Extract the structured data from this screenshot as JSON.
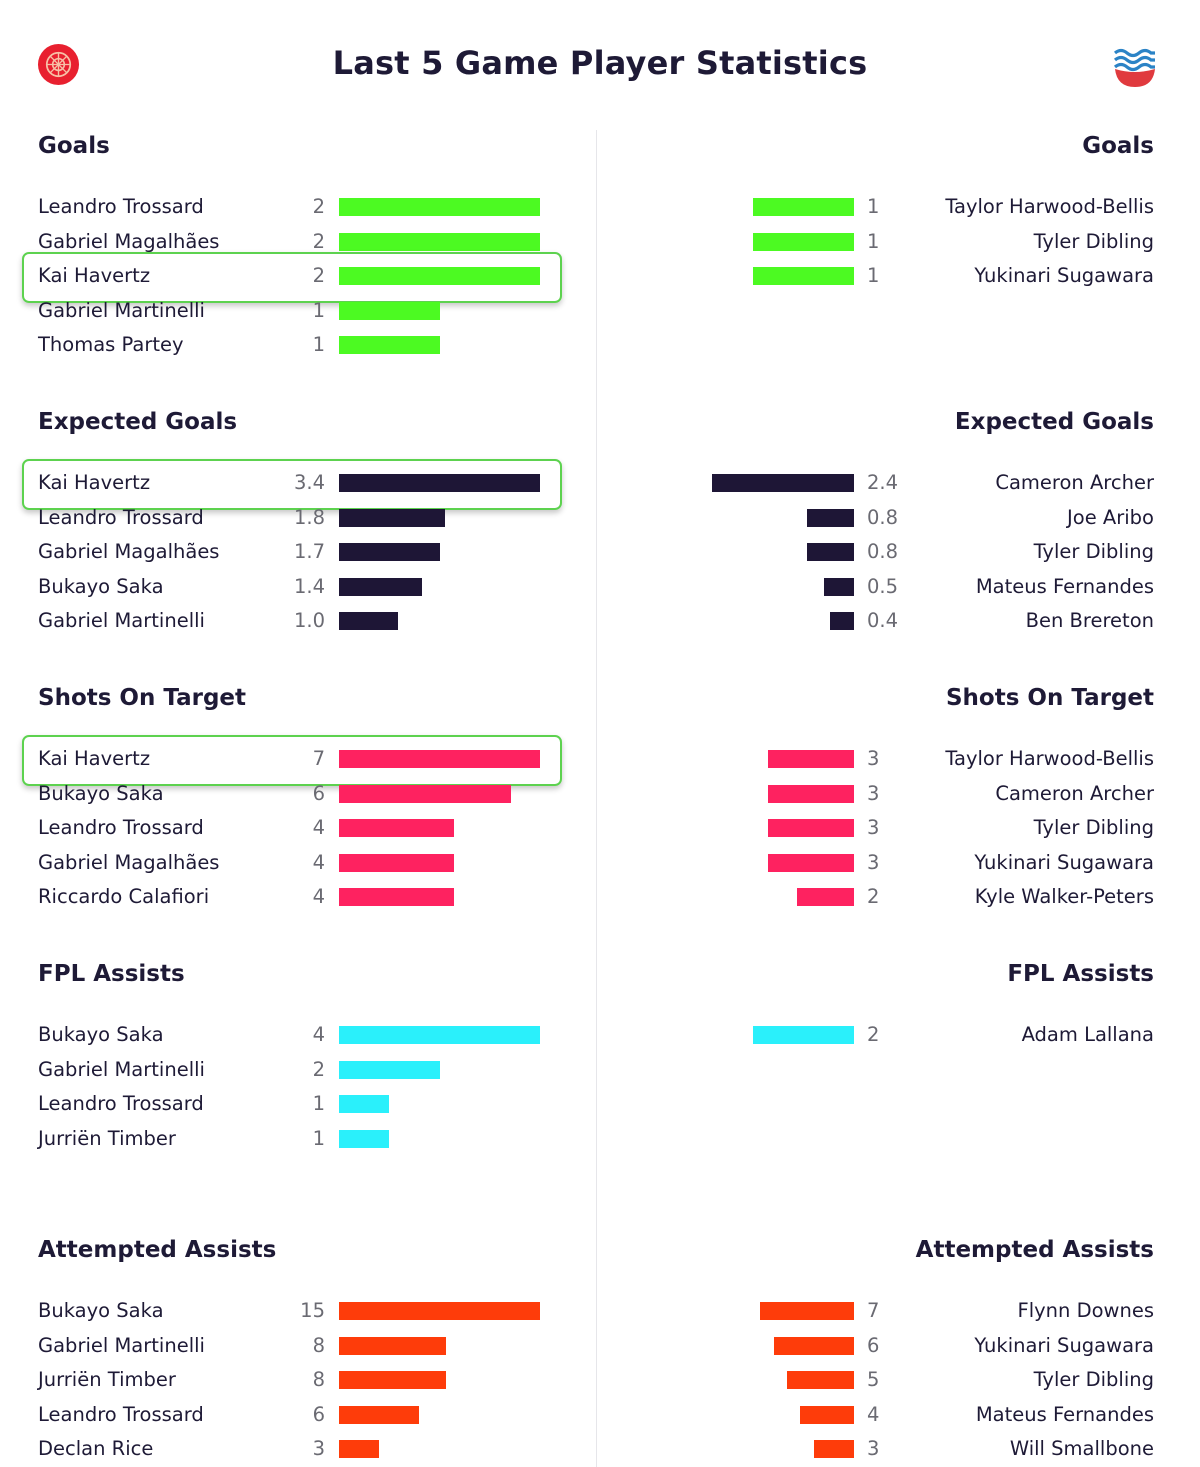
{
  "page": {
    "title": "Last 5 Game Player Statistics",
    "home_badge_icon": "arsenal-cannon-badge",
    "away_badge_icon": "southampton-wave-badge"
  },
  "chart_data": {
    "type": "bar",
    "orientation": "horizontal",
    "layout": "mirrored",
    "sections": [
      {
        "title": "Goals",
        "color": "#4cfa22",
        "scale_max": 2,
        "left": [
          {
            "name": "Leandro Trossard",
            "value": 2,
            "label": "2"
          },
          {
            "name": "Gabriel Magalhães",
            "value": 2,
            "label": "2"
          },
          {
            "name": "Kai Havertz",
            "value": 2,
            "label": "2",
            "highlighted": true
          },
          {
            "name": "Gabriel Martinelli",
            "value": 1,
            "label": "1"
          },
          {
            "name": "Thomas Partey",
            "value": 1,
            "label": "1"
          }
        ],
        "right": [
          {
            "name": "Taylor Harwood-Bellis",
            "value": 1,
            "label": "1"
          },
          {
            "name": "Tyler Dibling",
            "value": 1,
            "label": "1"
          },
          {
            "name": "Yukinari Sugawara",
            "value": 1,
            "label": "1"
          }
        ]
      },
      {
        "title": "Expected Goals",
        "color": "#1e1636",
        "scale_max": 3.4,
        "left": [
          {
            "name": "Kai Havertz",
            "value": 3.4,
            "label": "3.4",
            "highlighted": true
          },
          {
            "name": "Leandro Trossard",
            "value": 1.8,
            "label": "1.8"
          },
          {
            "name": "Gabriel Magalhães",
            "value": 1.7,
            "label": "1.7"
          },
          {
            "name": "Bukayo Saka",
            "value": 1.4,
            "label": "1.4"
          },
          {
            "name": "Gabriel Martinelli",
            "value": 1.0,
            "label": "1.0"
          }
        ],
        "right": [
          {
            "name": "Cameron Archer",
            "value": 2.4,
            "label": "2.4"
          },
          {
            "name": "Joe Aribo",
            "value": 0.8,
            "label": "0.8"
          },
          {
            "name": "Tyler Dibling",
            "value": 0.8,
            "label": "0.8"
          },
          {
            "name": "Mateus Fernandes",
            "value": 0.5,
            "label": "0.5"
          },
          {
            "name": "Ben Brereton",
            "value": 0.4,
            "label": "0.4"
          }
        ]
      },
      {
        "title": "Shots On Target",
        "color": "#fe2260",
        "scale_max": 7,
        "left": [
          {
            "name": "Kai Havertz",
            "value": 7,
            "label": "7",
            "highlighted": true
          },
          {
            "name": "Bukayo Saka",
            "value": 6,
            "label": "6"
          },
          {
            "name": "Leandro Trossard",
            "value": 4,
            "label": "4"
          },
          {
            "name": "Gabriel Magalhães",
            "value": 4,
            "label": "4"
          },
          {
            "name": "Riccardo Calafiori",
            "value": 4,
            "label": "4"
          }
        ],
        "right": [
          {
            "name": "Taylor Harwood-Bellis",
            "value": 3,
            "label": "3"
          },
          {
            "name": "Cameron Archer",
            "value": 3,
            "label": "3"
          },
          {
            "name": "Tyler Dibling",
            "value": 3,
            "label": "3"
          },
          {
            "name": "Yukinari Sugawara",
            "value": 3,
            "label": "3"
          },
          {
            "name": "Kyle Walker-Peters",
            "value": 2,
            "label": "2"
          }
        ]
      },
      {
        "title": "FPL Assists",
        "color": "#2af0fb",
        "scale_max": 4,
        "left": [
          {
            "name": "Bukayo Saka",
            "value": 4,
            "label": "4"
          },
          {
            "name": "Gabriel Martinelli",
            "value": 2,
            "label": "2"
          },
          {
            "name": "Leandro Trossard",
            "value": 1,
            "label": "1"
          },
          {
            "name": "Jurriën Timber",
            "value": 1,
            "label": "1"
          }
        ],
        "right": [
          {
            "name": "Adam Lallana",
            "value": 2,
            "label": "2"
          }
        ]
      },
      {
        "title": "Attempted Assists",
        "color": "#fe3c0a",
        "scale_max": 15,
        "left": [
          {
            "name": "Bukayo Saka",
            "value": 15,
            "label": "15"
          },
          {
            "name": "Gabriel Martinelli",
            "value": 8,
            "label": "8"
          },
          {
            "name": "Jurriën Timber",
            "value": 8,
            "label": "8"
          },
          {
            "name": "Leandro Trossard",
            "value": 6,
            "label": "6"
          },
          {
            "name": "Declan Rice",
            "value": 3,
            "label": "3"
          }
        ],
        "right": [
          {
            "name": "Flynn Downes",
            "value": 7,
            "label": "7"
          },
          {
            "name": "Yukinari Sugawara",
            "value": 6,
            "label": "6"
          },
          {
            "name": "Tyler Dibling",
            "value": 5,
            "label": "5"
          },
          {
            "name": "Mateus Fernandes",
            "value": 4,
            "label": "4"
          },
          {
            "name": "Will Smallbone",
            "value": 3,
            "label": "3"
          }
        ]
      }
    ]
  }
}
